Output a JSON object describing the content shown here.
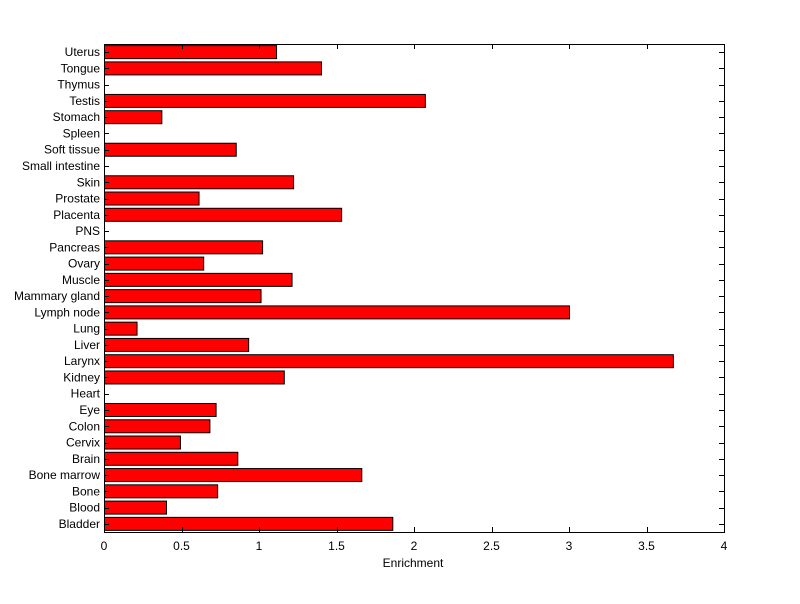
{
  "chart_data": {
    "type": "bar",
    "orientation": "horizontal",
    "title": "",
    "xlabel": "Enrichment",
    "ylabel": "",
    "xlim": [
      0,
      4
    ],
    "xticks": [
      0,
      0.5,
      1,
      1.5,
      2,
      2.5,
      3,
      3.5,
      4
    ],
    "xtick_labels": [
      "0",
      "0.5",
      "1",
      "1.5",
      "2",
      "2.5",
      "3",
      "3.5",
      "4"
    ],
    "grid": false,
    "legend": "none",
    "bar_color": "#ff0000",
    "edge_color": "#000000",
    "categories": [
      "Bladder",
      "Blood",
      "Bone",
      "Bone marrow",
      "Brain",
      "Cervix",
      "Colon",
      "Eye",
      "Heart",
      "Kidney",
      "Larynx",
      "Liver",
      "Lung",
      "Lymph node",
      "Mammary gland",
      "Muscle",
      "Ovary",
      "Pancreas",
      "PNS",
      "Placenta",
      "Prostate",
      "Skin",
      "Small intestine",
      "Soft tissue",
      "Spleen",
      "Stomach",
      "Testis",
      "Thymus",
      "Tongue",
      "Uterus"
    ],
    "values": [
      1.86,
      0.4,
      0.73,
      1.66,
      0.86,
      0.49,
      0.68,
      0.72,
      0,
      1.16,
      3.67,
      0.93,
      0.21,
      3.0,
      1.01,
      1.21,
      0.64,
      1.02,
      0,
      1.53,
      0.61,
      1.22,
      0,
      0.85,
      0,
      0.37,
      2.07,
      0,
      1.4,
      1.11
    ]
  }
}
